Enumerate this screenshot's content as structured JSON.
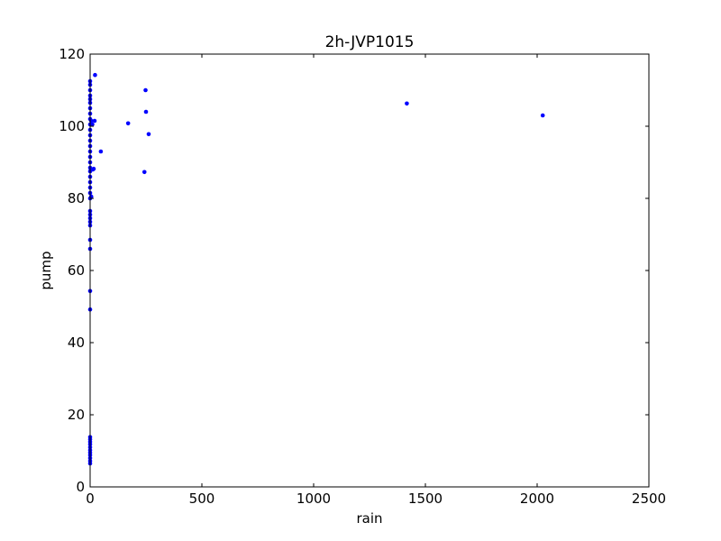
{
  "chart_data": {
    "type": "scatter",
    "title": "2h-JVP1015",
    "xlabel": "rain",
    "ylabel": "pump",
    "xlim": [
      0,
      2500
    ],
    "ylim": [
      0,
      120
    ],
    "xticks": [
      0,
      500,
      1000,
      1500,
      2000,
      2500
    ],
    "yticks": [
      0,
      20,
      40,
      60,
      80,
      100,
      120
    ],
    "grid": false,
    "colors": {
      "marker": "#0000ff",
      "axes": "#000000",
      "background": "#ffffff"
    },
    "series": [
      {
        "points": [
          [
            0,
            6.5
          ],
          [
            0,
            7.2
          ],
          [
            0,
            8.0
          ],
          [
            0,
            8.8
          ],
          [
            0,
            9.5
          ],
          [
            0,
            10.2
          ],
          [
            0,
            11.0
          ],
          [
            0,
            11.8
          ],
          [
            0,
            12.5
          ],
          [
            0,
            13.2
          ],
          [
            0,
            13.8
          ],
          [
            0,
            49.2
          ],
          [
            0,
            54.3
          ],
          [
            0,
            66.0
          ],
          [
            0,
            68.5
          ],
          [
            0,
            72.5
          ],
          [
            0,
            73.5
          ],
          [
            0,
            74.5
          ],
          [
            0,
            75.5
          ],
          [
            0,
            76.5
          ],
          [
            0,
            80.0
          ],
          [
            0,
            81.5
          ],
          [
            0,
            83.0
          ],
          [
            0,
            84.5
          ],
          [
            0,
            86.0
          ],
          [
            0,
            87.5
          ],
          [
            0,
            88.5
          ],
          [
            0,
            90.0
          ],
          [
            0,
            91.5
          ],
          [
            0,
            93.0
          ],
          [
            0,
            94.5
          ],
          [
            0,
            96.0
          ],
          [
            0,
            97.5
          ],
          [
            0,
            99.0
          ],
          [
            0,
            100.5
          ],
          [
            0,
            102.0
          ],
          [
            0,
            103.5
          ],
          [
            0,
            105.0
          ],
          [
            0,
            106.5
          ],
          [
            0,
            107.5
          ],
          [
            0,
            108.5
          ],
          [
            0,
            110.0
          ],
          [
            0,
            111.5
          ],
          [
            0,
            112.5
          ],
          [
            5,
            80.5
          ],
          [
            5,
            101.5
          ],
          [
            10,
            100.5
          ],
          [
            12,
            88.0
          ],
          [
            16,
            88.2
          ],
          [
            20,
            101.5
          ],
          [
            22,
            114.2
          ],
          [
            48,
            93.0
          ],
          [
            170,
            100.8
          ],
          [
            243,
            87.3
          ],
          [
            248,
            110.0
          ],
          [
            250,
            104.0
          ],
          [
            262,
            97.8
          ],
          [
            1417,
            106.3
          ],
          [
            2025,
            103.0
          ]
        ]
      }
    ]
  }
}
